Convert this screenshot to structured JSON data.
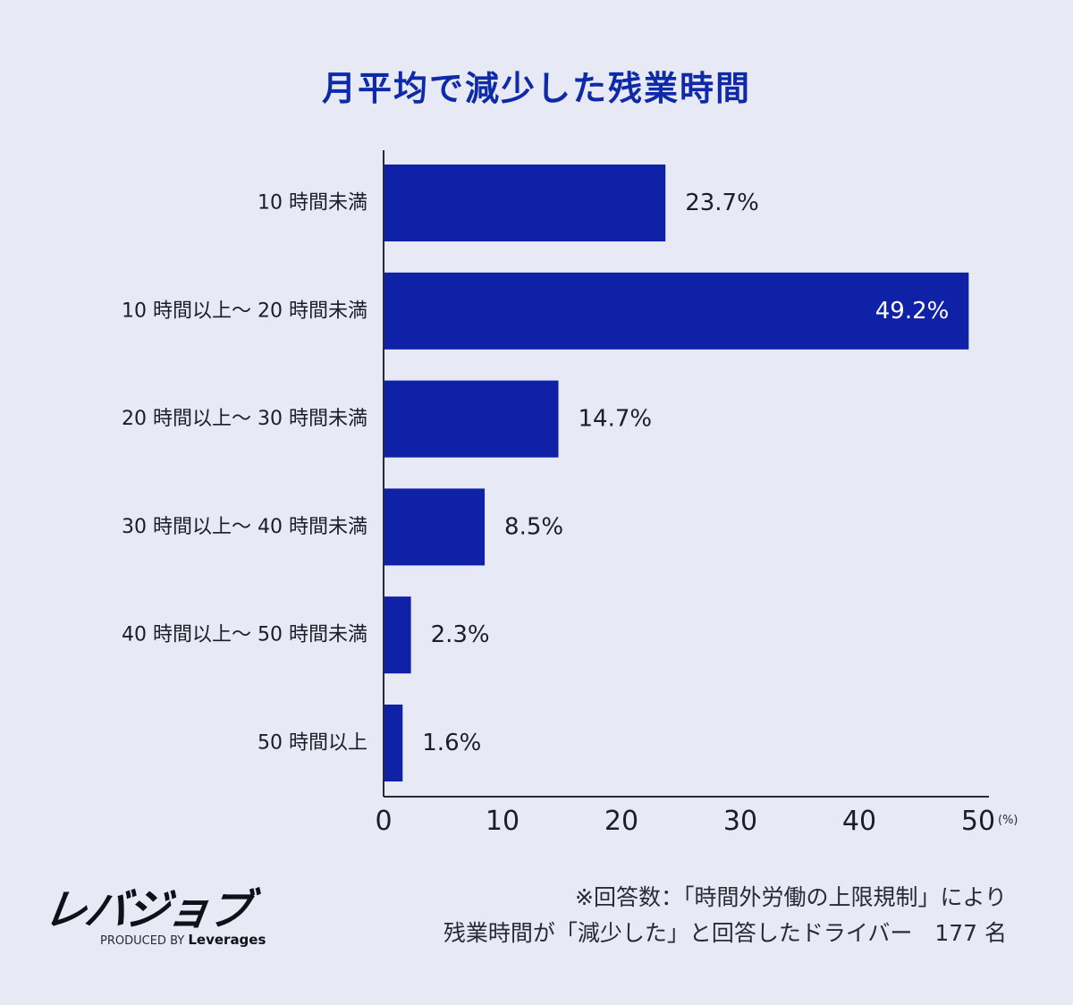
{
  "chart_data": {
    "type": "bar",
    "orientation": "horizontal",
    "title": "月平均で減少した残業時間",
    "categories": [
      "10 時間未満",
      "10 時間以上〜 20 時間未満",
      "20 時間以上〜 30 時間未満",
      "30 時間以上〜 40 時間未満",
      "40 時間以上〜 50 時間未満",
      "50 時間以上"
    ],
    "values": [
      23.7,
      49.2,
      14.7,
      8.5,
      2.3,
      1.6
    ],
    "value_labels": [
      "23.7%",
      "49.2%",
      "14.7%",
      "8.5%",
      "2.3%",
      "1.6%"
    ],
    "x_ticks": [
      "0",
      "10",
      "20",
      "30",
      "40",
      "50"
    ],
    "x_unit": "(%)",
    "xlim": [
      0,
      50
    ],
    "grid": false,
    "bar_color": "#0f21a6"
  },
  "footnote": {
    "line1": "※回答数：「時間外労働の上限規制」により",
    "line2": "残業時間が「減少した」と回答したドライバー　177 名"
  },
  "logo": {
    "name": "レバジョブ",
    "produced_by": "PRODUCED BY",
    "brand": "Leverages"
  }
}
